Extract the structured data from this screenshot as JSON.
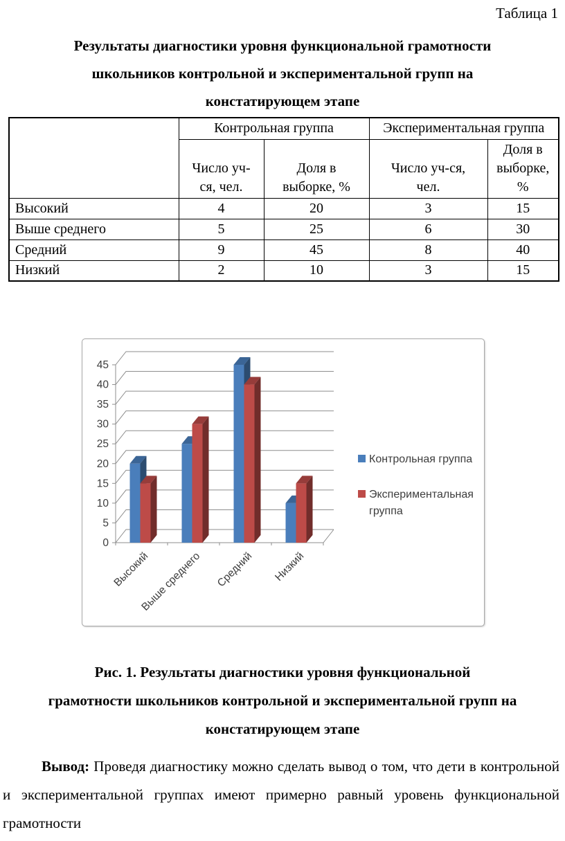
{
  "doc": {
    "table_label": "Таблица 1",
    "heading": "Результаты диагностики уровня функциональной грамотности\nшкольников контрольной и экспериментальной групп на\nконстатирующем этапе",
    "caption": "Рис. 1. Результаты диагностики уровня функциональной\nграмотности школьников контрольной и экспериментальной групп на\nконстатирующем этапе",
    "conclusion_label": "Вывод:",
    "conclusion_text": "Проведя диагностику можно сделать вывод о том, что дети в контрольной и экспериментальной группах имеют примерно равный уровень функциональной грамотности"
  },
  "table": {
    "group_headers": [
      "Контрольная группа",
      "Экспериментальная группа"
    ],
    "sub_headers": [
      "Число уч-\nся, чел.",
      "Доля в\nвыборке, %",
      "Число уч-ся,\nчел.",
      "Доля в\nвыборке,\n%"
    ],
    "rows": [
      {
        "label": "Высокий",
        "values": [
          "4",
          "20",
          "3",
          "15"
        ]
      },
      {
        "label": "Выше среднего",
        "values": [
          "5",
          "25",
          "6",
          "30"
        ]
      },
      {
        "label": "Средний",
        "values": [
          "9",
          "45",
          "8",
          "40"
        ]
      },
      {
        "label": "Низкий",
        "values": [
          "2",
          "10",
          "3",
          "15"
        ]
      }
    ]
  },
  "chart_data": {
    "type": "bar",
    "style": "3d-clustered",
    "title": "",
    "categories": [
      "Высокий",
      "Выше среднего",
      "Средний",
      "Низкий"
    ],
    "series": [
      {
        "name": "Контрольная группа",
        "color": "#4a7ebb",
        "values": [
          20,
          25,
          45,
          10
        ]
      },
      {
        "name": "Экспериментальная группа",
        "color": "#bd4b48",
        "values": [
          15,
          30,
          40,
          15
        ]
      }
    ],
    "xlabel": "",
    "ylabel": "",
    "ylim": [
      0,
      45
    ],
    "ytick_step": 5,
    "grid": true,
    "legend_position": "right",
    "grid_color": "#8e8e8e"
  }
}
